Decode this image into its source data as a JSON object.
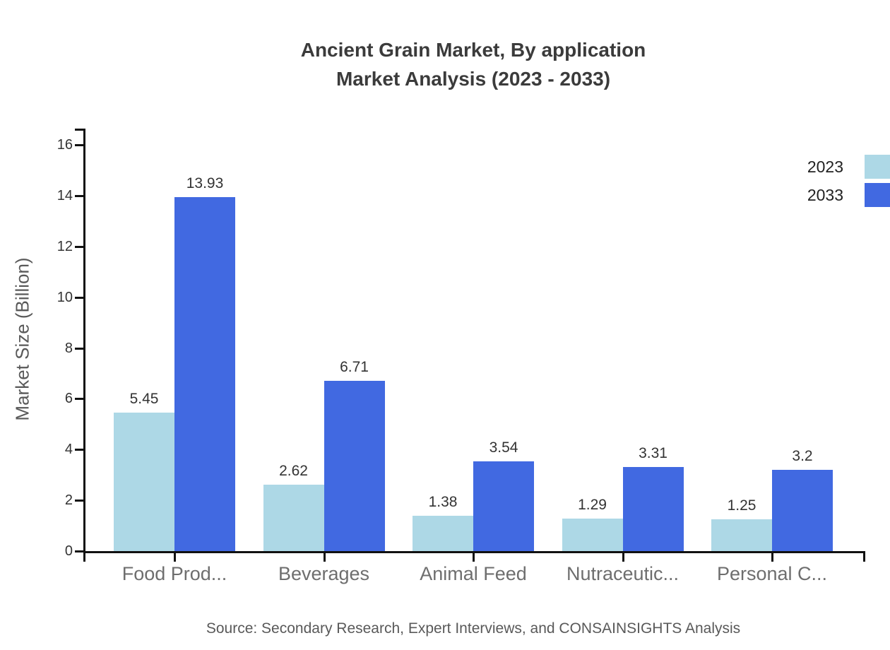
{
  "title": {
    "line1": "Ancient Grain Market, By application",
    "line2": "Market Analysis (2023 - 2033)"
  },
  "source": "Source: Secondary Research, Expert Interviews, and CONSAINSIGHTS Analysis",
  "colors": {
    "series_2023": "#ADD8E6",
    "series_2033": "#4169E1",
    "axis": "#111111",
    "title_text": "#3B3B3B",
    "tick_text": "#333333",
    "category_text": "#6E6E6E",
    "muted_text": "#595959"
  },
  "chart_data": {
    "type": "bar",
    "title": "Ancient Grain Market, By application Market Analysis (2023 - 2033)",
    "categories": [
      "Food Prod...",
      "Beverages",
      "Animal Feed",
      "Nutraceutic...",
      "Personal C..."
    ],
    "series": [
      {
        "name": "2023",
        "color": "#ADD8E6",
        "values": [
          5.45,
          2.62,
          1.38,
          1.29,
          1.25
        ],
        "labels": [
          "5.45",
          "2.62",
          "1.38",
          "1.29",
          "1.25"
        ]
      },
      {
        "name": "2033",
        "color": "#4169E1",
        "values": [
          13.93,
          6.71,
          3.54,
          3.31,
          3.2
        ],
        "labels": [
          "13.93",
          "6.71",
          "3.54",
          "3.31",
          "3.2"
        ]
      }
    ],
    "xlabel": "",
    "ylabel": "Market Size (Billion)",
    "yticks": [
      0,
      2,
      4,
      6,
      8,
      10,
      12,
      14,
      16
    ],
    "ylim": [
      0,
      16
    ],
    "grid": false,
    "legend_position": "top-right",
    "value_labels_shown": true
  }
}
